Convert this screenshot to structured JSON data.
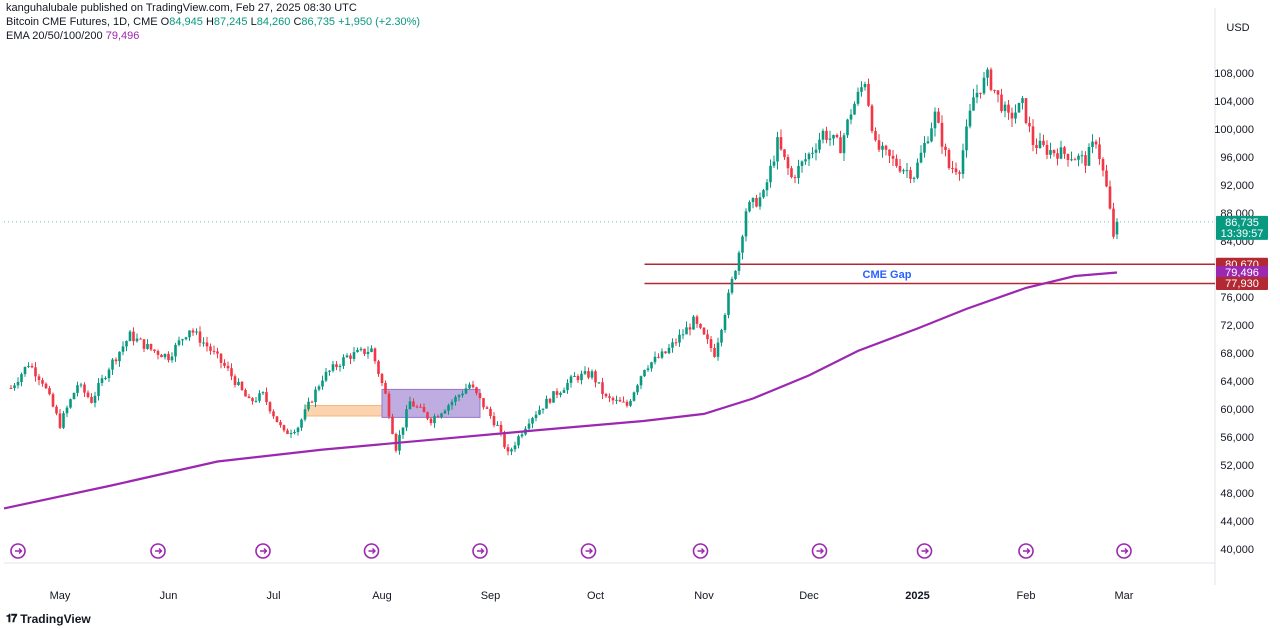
{
  "header": {
    "published": "kanguhalubale published on TradingView.com, Feb 27, 2025 08:30 UTC",
    "symbol": "Bitcoin CME Futures, 1D, CME",
    "o_label": "O",
    "o_value": "84,945",
    "h_label": "H",
    "h_value": "87,245",
    "l_label": "L",
    "l_value": "84,260",
    "c_label": "C",
    "c_value": "86,735",
    "change": "+1,950 (+2.30%)",
    "ema_label": "EMA 20/50/100/200",
    "ema_value": "79,496"
  },
  "footer": {
    "logo_text": "TradingView"
  },
  "chart_data": {
    "type": "candlestick",
    "currency_label": "USD",
    "ylim": [
      38000,
      113000
    ],
    "y_ticks": [
      40000,
      44000,
      48000,
      52000,
      56000,
      60000,
      64000,
      68000,
      72000,
      76000,
      80000,
      84000,
      88000,
      92000,
      96000,
      100000,
      104000,
      108000
    ],
    "y_tick_labels": [
      "40,000",
      "44,000",
      "48,000",
      "52,000",
      "56,000",
      "60,000",
      "64,000",
      "68,000",
      "72,000",
      "76,000",
      "80,000",
      "84,000",
      "88,000",
      "92,000",
      "96,000",
      "100,000",
      "104,000",
      "108,000"
    ],
    "x_labels": [
      {
        "label": "May",
        "date": "2024-05-01"
      },
      {
        "label": "Jun",
        "date": "2024-06-01"
      },
      {
        "label": "Jul",
        "date": "2024-07-01"
      },
      {
        "label": "Aug",
        "date": "2024-08-01"
      },
      {
        "label": "Sep",
        "date": "2024-09-01"
      },
      {
        "label": "Oct",
        "date": "2024-10-01"
      },
      {
        "label": "Nov",
        "date": "2024-11-01"
      },
      {
        "label": "Dec",
        "date": "2024-12-01"
      },
      {
        "label": "2025",
        "date": "2025-01-01"
      },
      {
        "label": "Feb",
        "date": "2025-02-01"
      },
      {
        "label": "Mar",
        "date": "2025-03-01"
      }
    ],
    "x_range": [
      "2024-04-15",
      "2025-03-27"
    ],
    "close_path": [
      {
        "d": "2024-04-17",
        "c": 63000
      },
      {
        "d": "2024-04-22",
        "c": 66500
      },
      {
        "d": "2024-04-26",
        "c": 64000
      },
      {
        "d": "2024-05-01",
        "c": 57800
      },
      {
        "d": "2024-05-06",
        "c": 63500
      },
      {
        "d": "2024-05-10",
        "c": 61200
      },
      {
        "d": "2024-05-15",
        "c": 66000
      },
      {
        "d": "2024-05-21",
        "c": 70500
      },
      {
        "d": "2024-05-27",
        "c": 68500
      },
      {
        "d": "2024-06-01",
        "c": 67500
      },
      {
        "d": "2024-06-07",
        "c": 71500
      },
      {
        "d": "2024-06-12",
        "c": 69000
      },
      {
        "d": "2024-06-18",
        "c": 65500
      },
      {
        "d": "2024-06-24",
        "c": 61000
      },
      {
        "d": "2024-06-28",
        "c": 62000
      },
      {
        "d": "2024-07-04",
        "c": 56500
      },
      {
        "d": "2024-07-08",
        "c": 57500
      },
      {
        "d": "2024-07-15",
        "c": 64500
      },
      {
        "d": "2024-07-22",
        "c": 67500
      },
      {
        "d": "2024-07-29",
        "c": 68500
      },
      {
        "d": "2024-08-02",
        "c": 62000
      },
      {
        "d": "2024-08-05",
        "c": 54500
      },
      {
        "d": "2024-08-09",
        "c": 61000
      },
      {
        "d": "2024-08-15",
        "c": 58500
      },
      {
        "d": "2024-08-22",
        "c": 61500
      },
      {
        "d": "2024-08-26",
        "c": 63500
      },
      {
        "d": "2024-09-03",
        "c": 57500
      },
      {
        "d": "2024-09-06",
        "c": 53500
      },
      {
        "d": "2024-09-12",
        "c": 58500
      },
      {
        "d": "2024-09-18",
        "c": 61500
      },
      {
        "d": "2024-09-25",
        "c": 64500
      },
      {
        "d": "2024-09-30",
        "c": 65000
      },
      {
        "d": "2024-10-04",
        "c": 61500
      },
      {
        "d": "2024-10-10",
        "c": 60500
      },
      {
        "d": "2024-10-15",
        "c": 66000
      },
      {
        "d": "2024-10-21",
        "c": 68000
      },
      {
        "d": "2024-10-29",
        "c": 72500
      },
      {
        "d": "2024-11-04",
        "c": 68000
      },
      {
        "d": "2024-11-08",
        "c": 76000
      },
      {
        "d": "2024-11-11",
        "c": 82500
      },
      {
        "d": "2024-11-13",
        "c": 88500
      },
      {
        "d": "2024-11-18",
        "c": 90500
      },
      {
        "d": "2024-11-22",
        "c": 98000
      },
      {
        "d": "2024-11-26",
        "c": 93000
      },
      {
        "d": "2024-12-02",
        "c": 97000
      },
      {
        "d": "2024-12-05",
        "c": 99500
      },
      {
        "d": "2024-12-10",
        "c": 97500
      },
      {
        "d": "2024-12-13",
        "c": 102500
      },
      {
        "d": "2024-12-17",
        "c": 107000
      },
      {
        "d": "2024-12-20",
        "c": 97500
      },
      {
        "d": "2024-12-26",
        "c": 95000
      },
      {
        "d": "2024-12-31",
        "c": 93500
      },
      {
        "d": "2025-01-06",
        "c": 102000
      },
      {
        "d": "2025-01-10",
        "c": 94500
      },
      {
        "d": "2025-01-13",
        "c": 94500
      },
      {
        "d": "2025-01-17",
        "c": 104500
      },
      {
        "d": "2025-01-21",
        "c": 107500
      },
      {
        "d": "2025-01-27",
        "c": 101500
      },
      {
        "d": "2025-01-31",
        "c": 103500
      },
      {
        "d": "2025-02-03",
        "c": 98000
      },
      {
        "d": "2025-02-07",
        "c": 97000
      },
      {
        "d": "2025-02-12",
        "c": 96500
      },
      {
        "d": "2025-02-18",
        "c": 95500
      },
      {
        "d": "2025-02-21",
        "c": 98500
      },
      {
        "d": "2025-02-24",
        "c": 91500
      },
      {
        "d": "2025-02-26",
        "c": 84800
      },
      {
        "d": "2025-02-27",
        "c": 86735
      }
    ],
    "ema200": [
      {
        "d": "2024-04-15",
        "v": 45800
      },
      {
        "d": "2024-05-15",
        "v": 49000
      },
      {
        "d": "2024-06-15",
        "v": 52500
      },
      {
        "d": "2024-07-15",
        "v": 54200
      },
      {
        "d": "2024-08-15",
        "v": 55600
      },
      {
        "d": "2024-09-15",
        "v": 57000
      },
      {
        "d": "2024-10-15",
        "v": 58300
      },
      {
        "d": "2024-11-01",
        "v": 59300
      },
      {
        "d": "2024-11-15",
        "v": 61500
      },
      {
        "d": "2024-12-01",
        "v": 64800
      },
      {
        "d": "2024-12-15",
        "v": 68300
      },
      {
        "d": "2025-01-01",
        "v": 71500
      },
      {
        "d": "2025-01-15",
        "v": 74300
      },
      {
        "d": "2025-02-01",
        "v": 77300
      },
      {
        "d": "2025-02-15",
        "v": 79000
      },
      {
        "d": "2025-02-27",
        "v": 79496
      }
    ],
    "gap": {
      "label": "CME Gap",
      "top": 80670,
      "bottom": 77930,
      "top_label": "80,670",
      "bottom_label": "77,930",
      "start": "2024-10-15"
    },
    "ema_label": "79,496",
    "last_price": {
      "value": 86735,
      "label": "86,735",
      "countdown": "13:39:57"
    },
    "boxes": [
      {
        "from": "2024-07-10",
        "to": "2024-08-01",
        "top": 60500,
        "bottom": 59000,
        "color": "#f9b57a"
      },
      {
        "from": "2024-08-01",
        "to": "2024-08-29",
        "top": 62800,
        "bottom": 58800,
        "color": "#9575cd"
      }
    ],
    "event_markers": [
      "2024-04-19",
      "2024-05-29",
      "2024-06-28",
      "2024-07-29",
      "2024-08-29",
      "2024-09-29",
      "2024-10-31",
      "2024-12-04",
      "2025-01-03",
      "2025-02-01",
      "2025-03-01"
    ],
    "colors": {
      "up": "#089981",
      "down": "#f23645",
      "ema": "#9c27b0",
      "gap": "#b22833",
      "price": "#089981",
      "marker": "#9c27b0"
    }
  }
}
